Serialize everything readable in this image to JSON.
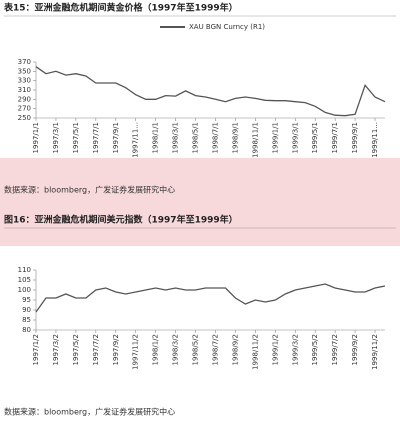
{
  "chart_data": [
    {
      "type": "line",
      "title": "表15：亚洲金融危机期间黄金价格（1997年至1999年）",
      "source": "数据来源：bloomberg，广发证券发展研究中心",
      "categories": [
        "1997/1/1",
        null,
        "1997/3/1",
        null,
        "1997/5/1",
        null,
        "1997/7/1",
        null,
        "1997/9/1",
        null,
        "1997/11...",
        null,
        "1998/1/1",
        null,
        "1998/3/1",
        null,
        "1998/5/1",
        null,
        "1998/7/1",
        null,
        "1998/9/1",
        null,
        "1998/11/1",
        null,
        "1999/1/1",
        null,
        "1999/3/1",
        null,
        "1999/5/1",
        null,
        "1999/7/1",
        null,
        "1999/9/1",
        null,
        "1999/11...",
        null
      ],
      "series": [
        {
          "name": "XAU BGN Curncy (R1)",
          "color": "#555555",
          "values": [
            360,
            345,
            350,
            342,
            345,
            340,
            325,
            325,
            325,
            315,
            300,
            290,
            290,
            298,
            297,
            308,
            298,
            295,
            290,
            285,
            292,
            295,
            292,
            288,
            287,
            287,
            285,
            283,
            275,
            262,
            256,
            255,
            258,
            320,
            295,
            285
          ]
        }
      ],
      "ylim": [
        250,
        370
      ],
      "yticks": [
        250,
        270,
        290,
        310,
        330,
        350,
        370
      ]
    },
    {
      "type": "line",
      "title": "图16：亚洲金融危机期间美元指数（1997年至1999年）",
      "source": "数据来源：bloomberg，广发证券发展研究中心",
      "categories": [
        "1997/1/2",
        null,
        "1997/3/2",
        null,
        "1997/5/2",
        null,
        "1997/7/2",
        null,
        "1997/9/2",
        null,
        "1997/11/2",
        null,
        "1998/1/2",
        null,
        "1998/3/2",
        null,
        "1998/5/2",
        null,
        "1998/7/2",
        null,
        "1998/9/2",
        null,
        "1998/11/2",
        null,
        "1999/1/2",
        null,
        "1999/3/2",
        null,
        "1999/5/2",
        null,
        "1999/7/2",
        null,
        "1999/9/2",
        null,
        "1999/11/2",
        null
      ],
      "series": [
        {
          "color": "#555555",
          "values": [
            89,
            96,
            96,
            98,
            96,
            96,
            100,
            101,
            99,
            98,
            99,
            100,
            101,
            100,
            101,
            100,
            100,
            101,
            101,
            101,
            96,
            93,
            95,
            94,
            95,
            98,
            100,
            101,
            102,
            103,
            101,
            100,
            99,
            99,
            101,
            102
          ]
        }
      ],
      "ylim": [
        80,
        110
      ],
      "yticks": [
        80,
        85,
        90,
        95,
        100,
        105,
        110
      ]
    }
  ]
}
